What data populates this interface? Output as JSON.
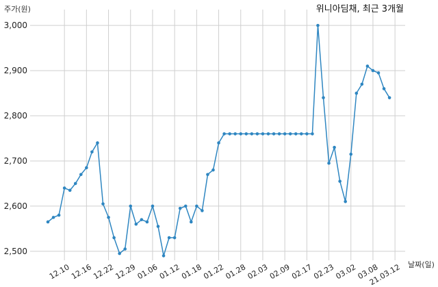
{
  "chart_data": {
    "type": "line",
    "title": "위니아딤채, 최근 3개월",
    "ylabel": "주가(원)",
    "xlabel": "날짜(일)",
    "ylim": [
      2480,
      3020
    ],
    "yticks": [
      2500,
      2600,
      2700,
      2800,
      2900,
      3000
    ],
    "ytick_labels": [
      "2,500",
      "2,600",
      "2,700",
      "2,800",
      "2,900",
      "3,000"
    ],
    "xtick_labels": [
      "12.10",
      "12.16",
      "12.22",
      "12.29",
      "01.06",
      "01.12",
      "01.18",
      "01.22",
      "01.28",
      "02.03",
      "02.09",
      "02.17",
      "02.23",
      "03.02",
      "03.08",
      "21.03.12"
    ],
    "xtick_index": [
      3,
      7,
      11,
      15,
      19,
      23,
      27,
      31,
      35,
      39,
      43,
      47,
      51,
      55,
      59,
      63
    ],
    "grid": true,
    "color": "#2e86c1",
    "series": [
      {
        "values": [
          2565,
          2575,
          2580,
          2640,
          2635,
          2650,
          2670,
          2685,
          2720,
          2740,
          2605,
          2575,
          2530,
          2495,
          2505,
          2600,
          2560,
          2570,
          2565,
          2600,
          2555,
          2490,
          2530,
          2530,
          2595,
          2600,
          2565,
          2600,
          2590,
          2670,
          2680,
          2740,
          2760,
          2760,
          2760,
          2760,
          2760,
          2760,
          2760,
          2760,
          2760,
          2760,
          2760,
          2760,
          2760,
          2760,
          2760,
          2760,
          2760,
          3000,
          2840,
          2695,
          2730,
          2655,
          2610,
          2715,
          2850,
          2870,
          2910,
          2900,
          2895,
          2860,
          2840
        ]
      }
    ]
  }
}
